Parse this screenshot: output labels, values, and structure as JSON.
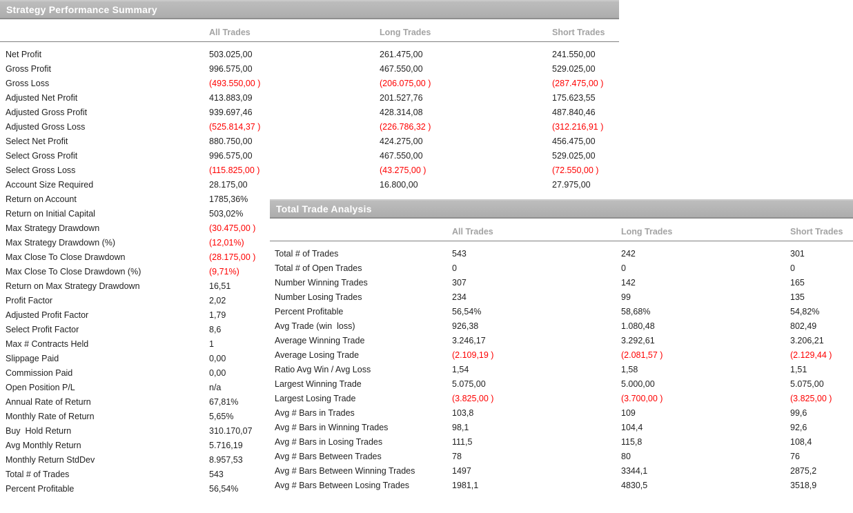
{
  "colors": {
    "section_bar_background": "#b1b1b1",
    "section_bar_text": "#ffffff",
    "column_header_text": "#a3a3a3",
    "body_text": "#1f1f1f",
    "negative_value_text": "#fe0000"
  },
  "sections": [
    {
      "title": "Strategy Performance Summary",
      "columns": [
        "All Trades",
        "Long Trades",
        "Short Trades"
      ],
      "rows": [
        {
          "label": "Net Profit",
          "all": "503.025,00",
          "long": "261.475,00",
          "short": "241.550,00"
        },
        {
          "label": "Gross Profit",
          "all": "996.575,00",
          "long": "467.550,00",
          "short": "529.025,00"
        },
        {
          "label": "Gross Loss",
          "all": "(493.550,00 )",
          "long": "(206.075,00 )",
          "short": "(287.475,00 )"
        },
        {
          "label": "Adjusted Net Profit",
          "all": "413.883,09",
          "long": "201.527,76",
          "short": "175.623,55"
        },
        {
          "label": "Adjusted Gross Profit",
          "all": "939.697,46",
          "long": "428.314,08",
          "short": "487.840,46"
        },
        {
          "label": "Adjusted Gross Loss",
          "all": "(525.814,37 )",
          "long": "(226.786,32 )",
          "short": "(312.216,91 )"
        },
        {
          "label": "Select Net Profit",
          "all": "880.750,00",
          "long": "424.275,00",
          "short": "456.475,00"
        },
        {
          "label": "Select Gross Profit",
          "all": "996.575,00",
          "long": "467.550,00",
          "short": "529.025,00"
        },
        {
          "label": "Select Gross Loss",
          "all": "(115.825,00 )",
          "long": "(43.275,00 )",
          "short": "(72.550,00 )"
        },
        {
          "label": "Account Size Required",
          "all": "28.175,00",
          "long": "16.800,00",
          "short": "27.975,00"
        },
        {
          "label": "Return on Account",
          "all": "1785,36%",
          "long": "",
          "short": ""
        },
        {
          "label": "Return on Initial Capital",
          "all": "503,02%",
          "long": "",
          "short": ""
        },
        {
          "label": "Max Strategy Drawdown",
          "all": "(30.475,00 )",
          "long": "",
          "short": ""
        },
        {
          "label": "Max Strategy Drawdown (%)",
          "all": "(12,01%)",
          "long": "",
          "short": ""
        },
        {
          "label": "Max Close To Close Drawdown",
          "all": "(28.175,00 )",
          "long": "",
          "short": ""
        },
        {
          "label": "Max Close To Close Drawdown (%)",
          "all": "(9,71%)",
          "long": "",
          "short": ""
        },
        {
          "label": "Return on Max Strategy Drawdown",
          "all": "16,51",
          "long": "",
          "short": ""
        },
        {
          "label": "Profit Factor",
          "all": "2,02",
          "long": "",
          "short": ""
        },
        {
          "label": "Adjusted Profit Factor",
          "all": "1,79",
          "long": "",
          "short": ""
        },
        {
          "label": "Select Profit Factor",
          "all": "8,6",
          "long": "",
          "short": ""
        },
        {
          "label": "Max # Contracts Held",
          "all": "1",
          "long": "",
          "short": ""
        },
        {
          "label": "Slippage Paid",
          "all": "0,00",
          "long": "",
          "short": ""
        },
        {
          "label": "Commission Paid",
          "all": "0,00",
          "long": "",
          "short": ""
        },
        {
          "label": "Open Position P/L",
          "all": "n/a",
          "long": "",
          "short": ""
        },
        {
          "label": "Annual Rate of Return",
          "all": "67,81%",
          "long": "",
          "short": ""
        },
        {
          "label": "Monthly Rate of Return",
          "all": "5,65%",
          "long": "",
          "short": ""
        },
        {
          "label": "Buy  Hold Return",
          "all": "310.170,07",
          "long": "",
          "short": ""
        },
        {
          "label": "Avg Monthly Return",
          "all": "5.716,19",
          "long": "",
          "short": ""
        },
        {
          "label": "Monthly Return StdDev",
          "all": "8.957,53",
          "long": "",
          "short": ""
        },
        {
          "label": "Total # of Trades",
          "all": "543",
          "long": "",
          "short": ""
        },
        {
          "label": "Percent Profitable",
          "all": "56,54%",
          "long": "",
          "short": ""
        }
      ]
    },
    {
      "title": "Total Trade Analysis",
      "columns": [
        "All Trades",
        "Long Trades",
        "Short Trades"
      ],
      "rows": [
        {
          "label": "Total # of Trades",
          "all": "543",
          "long": "242",
          "short": "301"
        },
        {
          "label": "Total # of Open Trades",
          "all": "0",
          "long": "0",
          "short": "0"
        },
        {
          "label": "Number Winning Trades",
          "all": "307",
          "long": "142",
          "short": "165"
        },
        {
          "label": "Number Losing Trades",
          "all": "234",
          "long": "99",
          "short": "135"
        },
        {
          "label": "Percent Profitable",
          "all": "56,54%",
          "long": "58,68%",
          "short": "54,82%"
        },
        {
          "label": "Avg Trade (win  loss)",
          "all": "926,38",
          "long": "1.080,48",
          "short": "802,49"
        },
        {
          "label": "Average Winning Trade",
          "all": "3.246,17",
          "long": "3.292,61",
          "short": "3.206,21"
        },
        {
          "label": "Average Losing Trade",
          "all": "(2.109,19 )",
          "long": "(2.081,57 )",
          "short": "(2.129,44 )"
        },
        {
          "label": "Ratio Avg Win / Avg Loss",
          "all": "1,54",
          "long": "1,58",
          "short": "1,51"
        },
        {
          "label": "Largest Winning Trade",
          "all": "5.075,00",
          "long": "5.000,00",
          "short": "5.075,00"
        },
        {
          "label": "Largest Losing Trade",
          "all": "(3.825,00 )",
          "long": "(3.700,00 )",
          "short": "(3.825,00 )"
        },
        {
          "label": "Avg # Bars in Trades",
          "all": "103,8",
          "long": "109",
          "short": "99,6"
        },
        {
          "label": "Avg # Bars in Winning Trades",
          "all": "98,1",
          "long": "104,4",
          "short": "92,6"
        },
        {
          "label": "Avg # Bars in Losing Trades",
          "all": "111,5",
          "long": "115,8",
          "short": "108,4"
        },
        {
          "label": "Avg # Bars Between Trades",
          "all": "78",
          "long": "80",
          "short": "76"
        },
        {
          "label": "Avg # Bars Between Winning Trades",
          "all": "1497",
          "long": "3344,1",
          "short": "2875,2"
        },
        {
          "label": "Avg # Bars Between Losing Trades",
          "all": "1981,1",
          "long": "4830,5",
          "short": "3518,9"
        }
      ]
    }
  ]
}
